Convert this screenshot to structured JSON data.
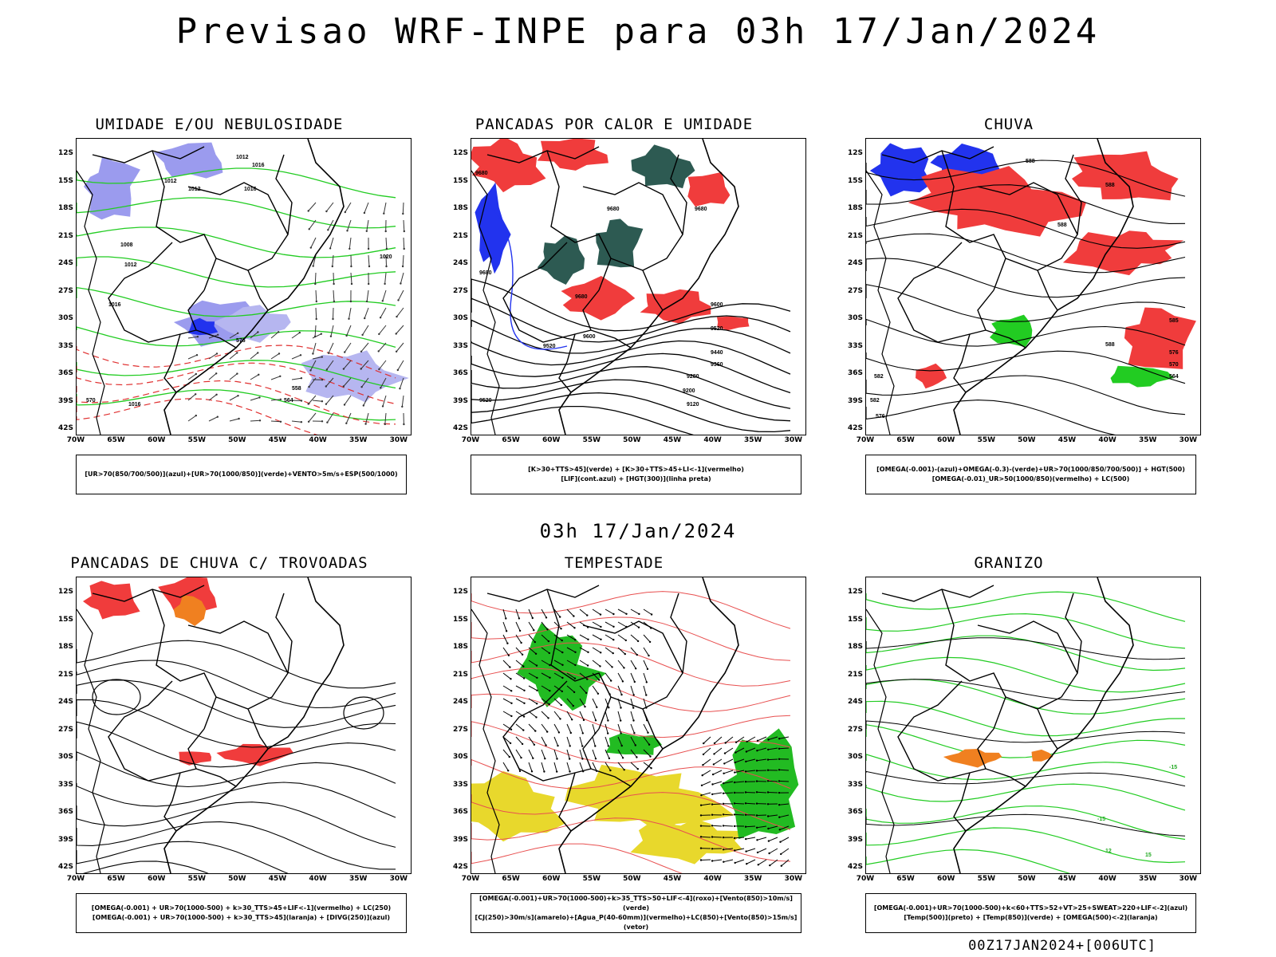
{
  "header": {
    "title": "Previsao WRF-INPE  para 03h 17/Jan/2024"
  },
  "mid": {
    "title": "03h 17/Jan/2024"
  },
  "footer": {
    "stamp": "00Z17JAN2024+[006UTC]"
  },
  "axes": {
    "lat": [
      "12S",
      "15S",
      "18S",
      "21S",
      "24S",
      "27S",
      "30S",
      "33S",
      "36S",
      "39S",
      "42S"
    ],
    "lon": [
      "70W",
      "65W",
      "60W",
      "55W",
      "50W",
      "45W",
      "40W",
      "35W",
      "30W"
    ]
  },
  "panels": [
    {
      "title": "UMIDADE E/OU NEBULOSIDADE",
      "legend": [
        "[UR>70(850/700/500)](azul)+[UR>70(1000/850)](verde)+VENTO>5m/s+ESP(500/1000)"
      ]
    },
    {
      "title": "PANCADAS POR CALOR E UMIDADE",
      "legend": [
        "[K>30+TTS>45](verde) + [K>30+TTS>45+LI<-1](vermelho)",
        "[LIF](cont.azul) + [HGT(300)](linha preta)"
      ]
    },
    {
      "title": "CHUVA",
      "legend": [
        "[OMEGA(-0.001)-(azul)+OMEGA(-0.3)-(verde)+UR>70(1000/850/700/500)] + HGT(500)",
        "[OMEGA(-0.01)_UR>50(1000/850)(vermelho) + LC(500)"
      ]
    },
    {
      "title": "PANCADAS DE CHUVA C/ TROVOADAS",
      "legend": [
        "[OMEGA(-0.001) + UR>70(1000-500) + k>30_TTS>45+LIF<-1](vermelho) + LC(250)",
        "[OMEGA(-0.001) + UR>70(1000-500) + k>30_TTS>45](laranja) + [DIVG(250)](azul)"
      ]
    },
    {
      "title": "TEMPESTADE",
      "legend": [
        "[OMEGA(-0.001)+UR>70(1000-500)+k>35_TTS>50+LIF<-4](roxo)+[Vento(850)>10m/s](verde)",
        "[CJ(250)>30m/s](amarelo)+[Agua_P(40-60mm)](vermelho)+LC(850)+[Vento(850)>15m/s](vetor)"
      ]
    },
    {
      "title": "GRANIZO",
      "legend": [
        "[OMEGA(-0.001)+UR>70(1000-500)+k<60+TTS>52+VT>25+SWEAT>220+LIF<-2](azul)",
        "[Temp(500)](preto) + [Temp(850)](verde) + [OMEGA(500)<-2](laranja)"
      ]
    }
  ],
  "map_labels": {
    "p1": [
      "1012",
      "1016",
      "1012",
      "1012",
      "1016",
      "1020",
      "1008",
      "1012",
      "1016",
      "1016",
      "570",
      "576",
      "564",
      "558"
    ],
    "p2": [
      "9680",
      "9680",
      "9680",
      "9600",
      "9520",
      "9440",
      "9360",
      "9280",
      "9200",
      "9120",
      "9520",
      "9600",
      "9520",
      "9680",
      "9680"
    ],
    "p3": [
      "588",
      "588",
      "588",
      "588",
      "582",
      "576",
      "570",
      "564",
      "582",
      "576",
      "585"
    ],
    "p6": [
      "-15",
      "-15",
      "12",
      "15"
    ]
  },
  "colors": {
    "red": "#f03c3c",
    "green": "#22cc22",
    "blue": "#2233ee",
    "lightblue": "#9b9bee",
    "teal": "#2d5a52",
    "yellow": "#e8d82c",
    "orange": "#f08020"
  }
}
